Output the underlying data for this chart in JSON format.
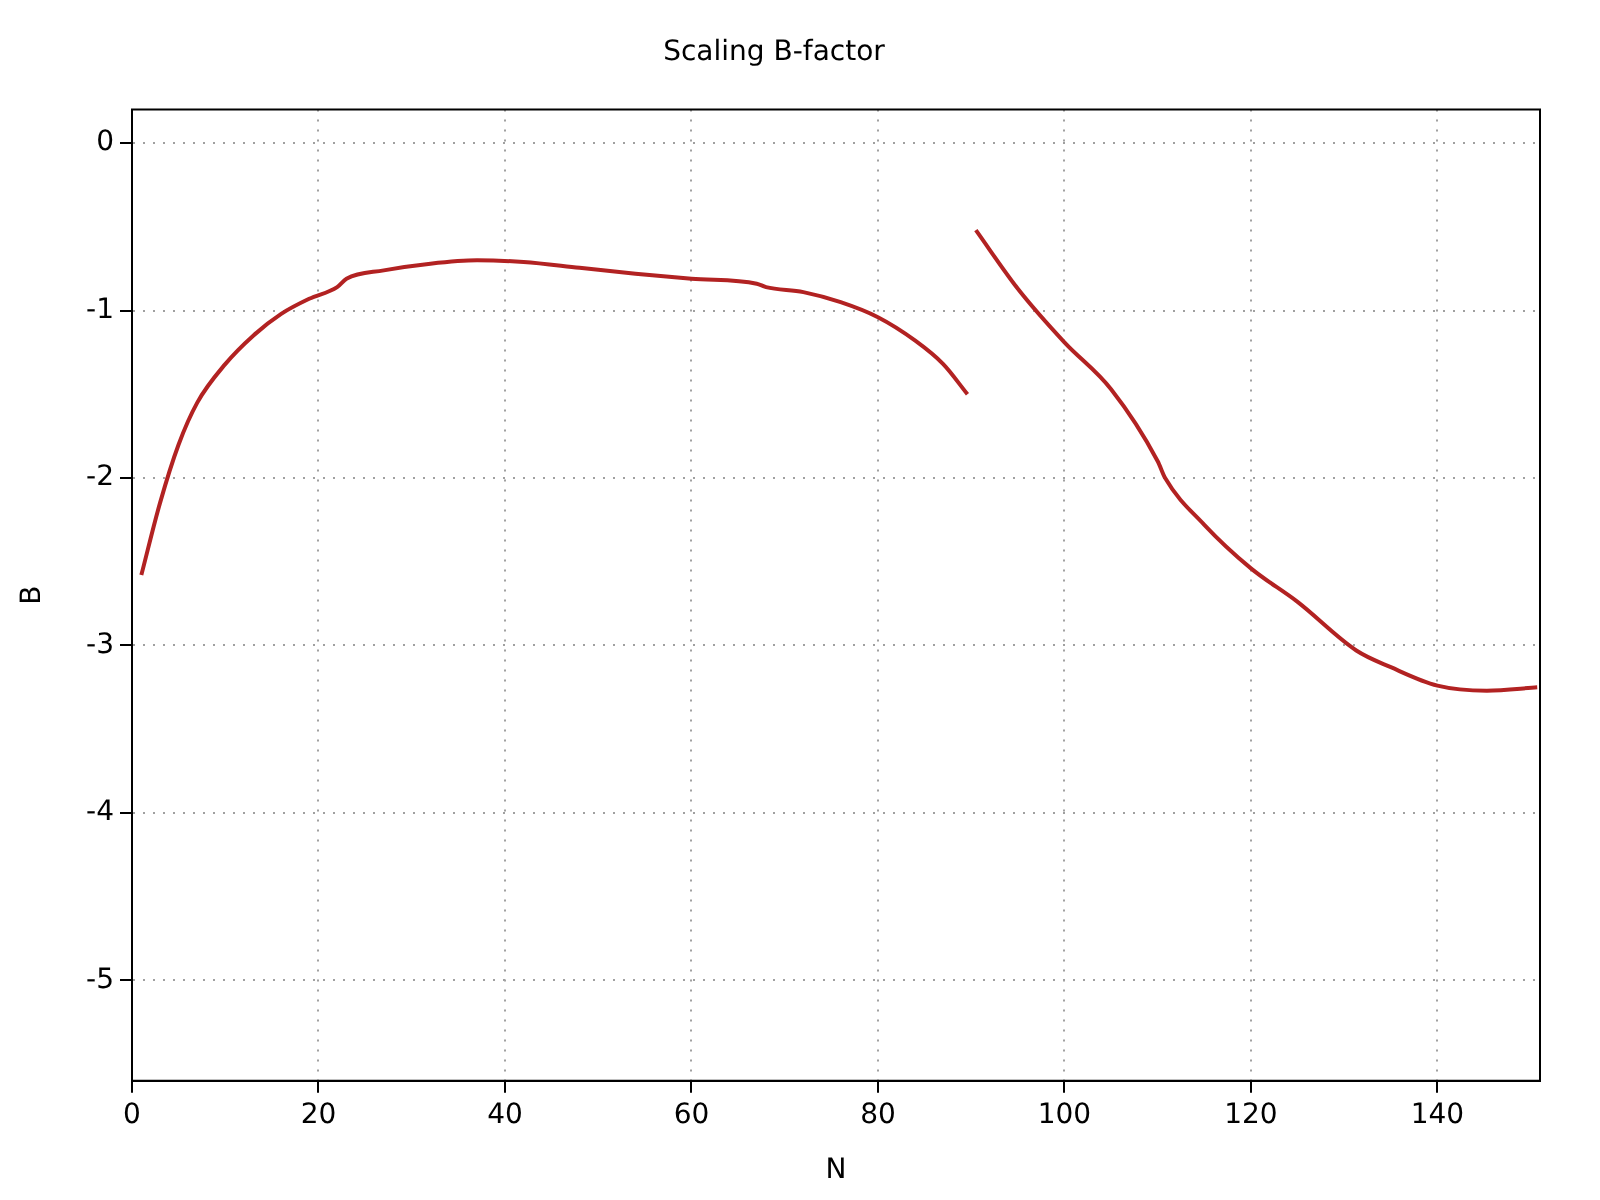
{
  "chart_data": {
    "type": "line",
    "title": "Scaling B-factor",
    "xlabel": "N",
    "ylabel": "B",
    "series": [
      {
        "color": "#b22222",
        "x": [
          1,
          3,
          5,
          7,
          10,
          13,
          16,
          19,
          22,
          23,
          27,
          32,
          37,
          42,
          48,
          54,
          60,
          67,
          68,
          72,
          76,
          80,
          84,
          87,
          89.6
        ],
        "values": [
          -2.58,
          -2.15,
          -1.8,
          -1.55,
          -1.32,
          -1.15,
          -1.02,
          -0.93,
          -0.86,
          -0.81,
          -0.76,
          -0.72,
          -0.7,
          -0.71,
          -0.745,
          -0.78,
          -0.81,
          -0.84,
          -0.86,
          -0.89,
          -0.95,
          -1.04,
          -1.18,
          -1.32,
          -1.5
        ]
      },
      {
        "color": "#b22222",
        "x": [
          90.5,
          95,
          100,
          105,
          110,
          110.8,
          115,
          120,
          125,
          131.3,
          135,
          140,
          145.3,
          150.7
        ],
        "values": [
          -0.52,
          -0.87,
          -1.19,
          -1.47,
          -1.9,
          -2.0,
          -2.28,
          -2.54,
          -2.74,
          -3.03,
          -3.13,
          -3.24,
          -3.27,
          -3.25
        ]
      }
    ],
    "xlim": [
      0,
      151
    ],
    "ylim": [
      -5.6,
      0.2
    ],
    "xticks": [
      0,
      20,
      40,
      60,
      80,
      100,
      120,
      140
    ],
    "yticks": [
      -5,
      -4,
      -3,
      -2,
      -1,
      0
    ],
    "grid": true,
    "legend": false,
    "marker": "none",
    "line_style": "solid"
  }
}
